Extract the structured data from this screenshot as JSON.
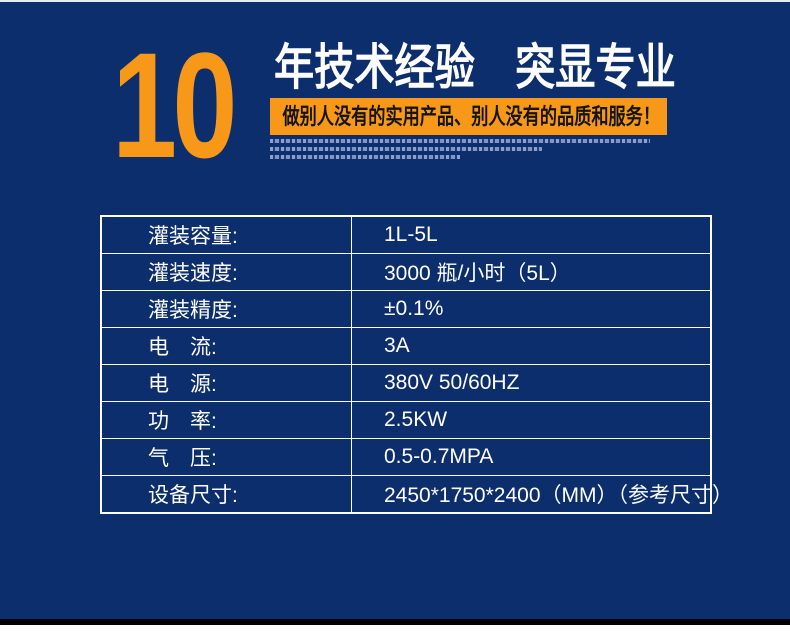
{
  "colors": {
    "background_navy": "#0d2e6c",
    "accent_orange": "#f79818",
    "headline_white": "#ffffff",
    "banner_text_black": "#141414",
    "table_border_white": "#ffffff",
    "bottom_bar_black": "#000000",
    "bottom_strip_white": "#ffffff"
  },
  "hero": {
    "years_number": "10",
    "headline": "年技术经验　突显专业",
    "banner_text": "做别人没有的实用产品、别人没有的品质和服务！"
  },
  "spec_table": {
    "rows": [
      {
        "label": "灌装容量:",
        "value": "1L-5L"
      },
      {
        "label": "灌装速度:",
        "value": "3000 瓶/小时（5L）"
      },
      {
        "label": "灌装精度:",
        "value": "±0.1%"
      },
      {
        "label": "电　流:",
        "value": "3A"
      },
      {
        "label": "电　源:",
        "value": "380V 50/60HZ"
      },
      {
        "label": "功　率:",
        "value": "2.5KW"
      },
      {
        "label": "气　压:",
        "value": "0.5-0.7MPA"
      },
      {
        "label": "设备尺寸:",
        "value": "2450*1750*2400（MM）（参考尺寸）"
      }
    ]
  }
}
